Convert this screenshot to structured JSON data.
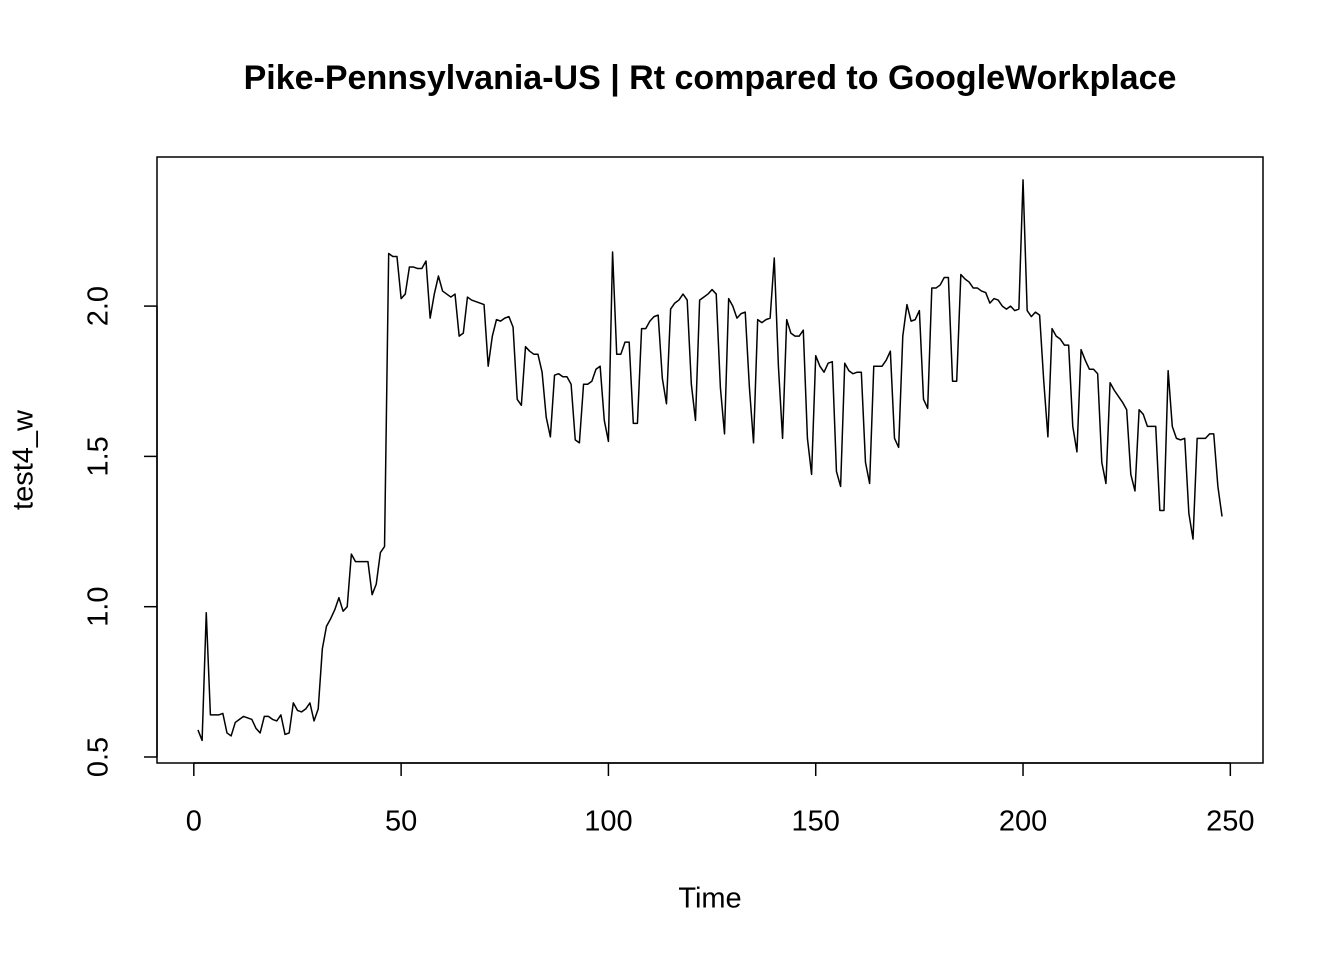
{
  "chart_data": {
    "type": "line",
    "title": "Pike-Pennsylvania-US | Rt compared to GoogleWorkplace",
    "x_label": "Time",
    "y_label": "test4_w",
    "color": "#000000",
    "x": [
      1,
      2,
      3,
      4,
      5,
      6,
      7,
      8,
      9,
      10,
      11,
      12,
      13,
      14,
      15,
      16,
      17,
      18,
      19,
      20,
      21,
      22,
      23,
      24,
      25,
      26,
      27,
      28,
      29,
      30,
      31,
      32,
      33,
      34,
      35,
      36,
      37,
      38,
      39,
      40,
      41,
      42,
      43,
      44,
      45,
      46,
      47,
      48,
      49,
      50,
      51,
      52,
      53,
      54,
      55,
      56,
      57,
      58,
      59,
      60,
      61,
      62,
      63,
      64,
      65,
      66,
      67,
      68,
      69,
      70,
      71,
      72,
      73,
      74,
      75,
      76,
      77,
      78,
      79,
      80,
      81,
      82,
      83,
      84,
      85,
      86,
      87,
      88,
      89,
      90,
      91,
      92,
      93,
      94,
      95,
      96,
      97,
      98,
      99,
      100,
      101,
      102,
      103,
      104,
      105,
      106,
      107,
      108,
      109,
      110,
      111,
      112,
      113,
      114,
      115,
      116,
      117,
      118,
      119,
      120,
      121,
      122,
      123,
      124,
      125,
      126,
      127,
      128,
      129,
      130,
      131,
      132,
      133,
      134,
      135,
      136,
      137,
      138,
      139,
      140,
      141,
      142,
      143,
      144,
      145,
      146,
      147,
      148,
      149,
      150,
      151,
      152,
      153,
      154,
      155,
      156,
      157,
      158,
      159,
      160,
      161,
      162,
      163,
      164,
      165,
      166,
      167,
      168,
      169,
      170,
      171,
      172,
      173,
      174,
      175,
      176,
      177,
      178,
      179,
      180,
      181,
      182,
      183,
      184,
      185,
      186,
      187,
      188,
      189,
      190,
      191,
      192,
      193,
      194,
      195,
      196,
      197,
      198,
      199,
      200,
      201,
      202,
      203,
      204,
      205,
      206,
      207,
      208,
      209,
      210,
      211,
      212,
      213,
      214,
      215,
      216,
      217,
      218,
      219,
      220,
      221,
      222,
      223,
      224,
      225,
      226,
      227,
      228,
      229,
      230,
      231,
      232,
      233,
      234,
      235,
      236,
      237,
      238,
      239,
      240,
      241,
      242,
      243,
      244,
      245,
      246,
      247,
      248
    ],
    "values": [
      0.59,
      0.555,
      0.98,
      0.64,
      0.64,
      0.64,
      0.645,
      0.58,
      0.57,
      0.615,
      0.625,
      0.635,
      0.63,
      0.625,
      0.595,
      0.58,
      0.635,
      0.635,
      0.625,
      0.62,
      0.64,
      0.575,
      0.58,
      0.68,
      0.655,
      0.65,
      0.66,
      0.68,
      0.62,
      0.66,
      0.86,
      0.935,
      0.96,
      0.99,
      1.03,
      0.985,
      1.0,
      1.175,
      1.15,
      1.15,
      1.15,
      1.15,
      1.04,
      1.075,
      1.18,
      1.2,
      2.175,
      2.165,
      2.165,
      2.025,
      2.04,
      2.13,
      2.13,
      2.125,
      2.125,
      2.15,
      1.96,
      2.04,
      2.1,
      2.05,
      2.04,
      2.03,
      2.04,
      1.9,
      1.91,
      2.03,
      2.02,
      2.015,
      2.01,
      2.005,
      1.8,
      1.9,
      1.955,
      1.95,
      1.96,
      1.965,
      1.93,
      1.69,
      1.67,
      1.865,
      1.85,
      1.84,
      1.84,
      1.78,
      1.63,
      1.565,
      1.77,
      1.775,
      1.765,
      1.765,
      1.74,
      1.555,
      1.545,
      1.74,
      1.74,
      1.75,
      1.79,
      1.8,
      1.62,
      1.55,
      2.18,
      1.84,
      1.84,
      1.88,
      1.88,
      1.61,
      1.61,
      1.925,
      1.925,
      1.95,
      1.965,
      1.97,
      1.76,
      1.675,
      1.99,
      2.01,
      2.02,
      2.04,
      2.02,
      1.74,
      1.62,
      2.02,
      2.03,
      2.04,
      2.055,
      2.04,
      1.73,
      1.575,
      2.025,
      2.0,
      1.96,
      1.975,
      1.98,
      1.73,
      1.545,
      1.955,
      1.945,
      1.955,
      1.96,
      2.16,
      1.8,
      1.56,
      1.955,
      1.91,
      1.9,
      1.9,
      1.92,
      1.56,
      1.44,
      1.835,
      1.8,
      1.78,
      1.81,
      1.815,
      1.45,
      1.4,
      1.81,
      1.785,
      1.775,
      1.78,
      1.78,
      1.48,
      1.41,
      1.8,
      1.8,
      1.8,
      1.82,
      1.85,
      1.56,
      1.53,
      1.9,
      2.005,
      1.95,
      1.955,
      1.985,
      1.69,
      1.66,
      2.06,
      2.06,
      2.07,
      2.095,
      2.095,
      1.75,
      1.75,
      2.105,
      2.09,
      2.08,
      2.06,
      2.06,
      2.05,
      2.045,
      2.01,
      2.025,
      2.02,
      2.0,
      1.99,
      2.0,
      1.985,
      1.99,
      2.42,
      1.985,
      1.965,
      1.98,
      1.97,
      1.75,
      1.565,
      1.925,
      1.9,
      1.89,
      1.87,
      1.87,
      1.6,
      1.515,
      1.855,
      1.82,
      1.79,
      1.79,
      1.775,
      1.48,
      1.41,
      1.745,
      1.72,
      1.7,
      1.68,
      1.655,
      1.44,
      1.385,
      1.655,
      1.64,
      1.6,
      1.6,
      1.6,
      1.32,
      1.32,
      1.785,
      1.6,
      1.56,
      1.555,
      1.56,
      1.31,
      1.225,
      1.56,
      1.56,
      1.56,
      1.575,
      1.575,
      1.4,
      1.3
    ],
    "xlim": [
      -8.88,
      257.88
    ],
    "ylim": [
      0.48,
      2.496
    ],
    "xticks": [
      0,
      50,
      100,
      150,
      200,
      250
    ],
    "yticks": [
      0.5,
      {
        "value": 1,
        "label": "1.0"
      },
      1.5,
      {
        "value": 2,
        "label": "2.0"
      }
    ]
  }
}
